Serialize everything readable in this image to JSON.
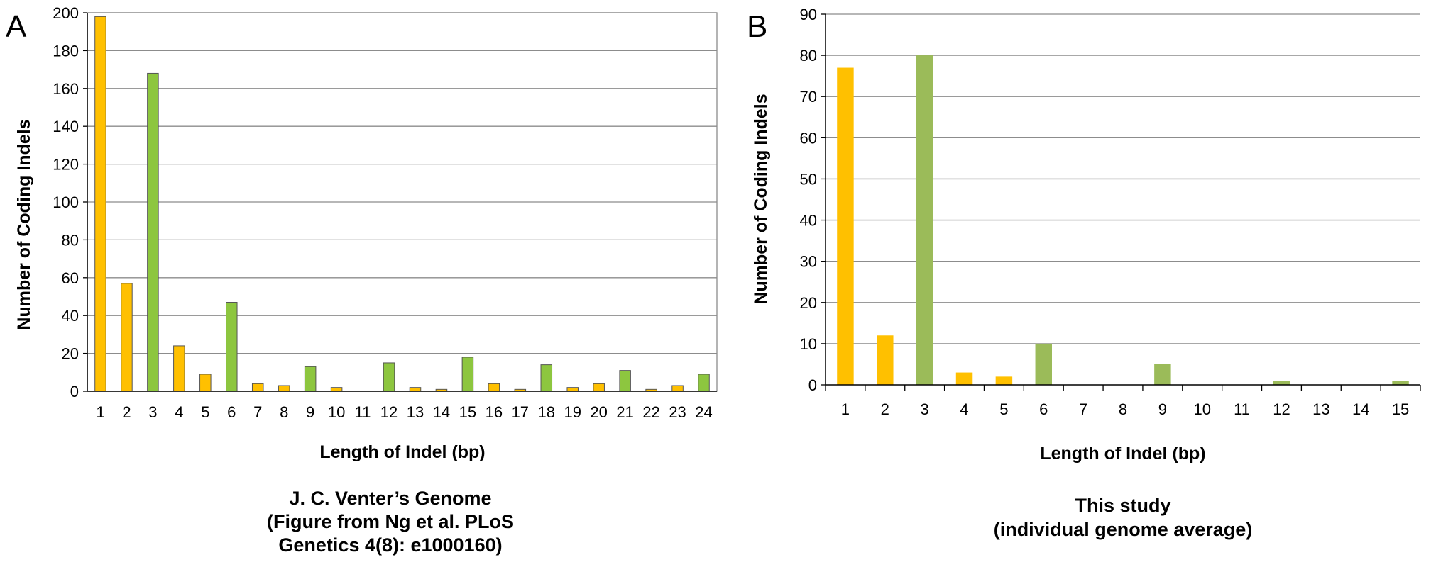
{
  "panels": [
    {
      "letter": "A",
      "caption": [
        "J. C. Venter’s Genome",
        "(Figure from Ng et al. PLoS",
        "Genetics 4(8): e1000160)"
      ]
    },
    {
      "letter": "B",
      "caption": [
        "This study",
        "(individual genome average)"
      ]
    }
  ],
  "colors": {
    "frameshift": "#ffc000",
    "in_frame": "#9bbb59",
    "in_frame_a": "#8dc63f",
    "bar_outline_a": "#555555",
    "gridline": "#8c8c8c",
    "axis": "#000000"
  },
  "chart_data": [
    {
      "type": "bar",
      "categories": [
        "1",
        "2",
        "3",
        "4",
        "5",
        "6",
        "7",
        "8",
        "9",
        "10",
        "11",
        "12",
        "13",
        "14",
        "15",
        "16",
        "17",
        "18",
        "19",
        "20",
        "21",
        "22",
        "23",
        "24"
      ],
      "values": [
        198,
        57,
        168,
        24,
        9,
        47,
        4,
        3,
        13,
        2,
        0,
        15,
        2,
        1,
        18,
        4,
        1,
        14,
        2,
        4,
        11,
        1,
        3,
        9
      ],
      "title": "",
      "xlabel": "Length of Indel (bp)",
      "ylabel": "Number of Coding Indels",
      "ylim": [
        0,
        200
      ],
      "ytick_step": 20,
      "grid": true,
      "bar_color_rule": "lengths divisible by 3 are green, others yellow"
    },
    {
      "type": "bar",
      "categories": [
        "1",
        "2",
        "3",
        "4",
        "5",
        "6",
        "7",
        "8",
        "9",
        "10",
        "11",
        "12",
        "13",
        "14",
        "15"
      ],
      "values": [
        77,
        12,
        80,
        3,
        2,
        10,
        0,
        0,
        5,
        0,
        0,
        1,
        0,
        0,
        1
      ],
      "title": "",
      "xlabel": "Length of Indel (bp)",
      "ylabel": "Number of Coding Indels",
      "ylim": [
        0,
        90
      ],
      "ytick_step": 10,
      "grid": true,
      "bar_color_rule": "lengths divisible by 3 are green, others yellow"
    }
  ]
}
